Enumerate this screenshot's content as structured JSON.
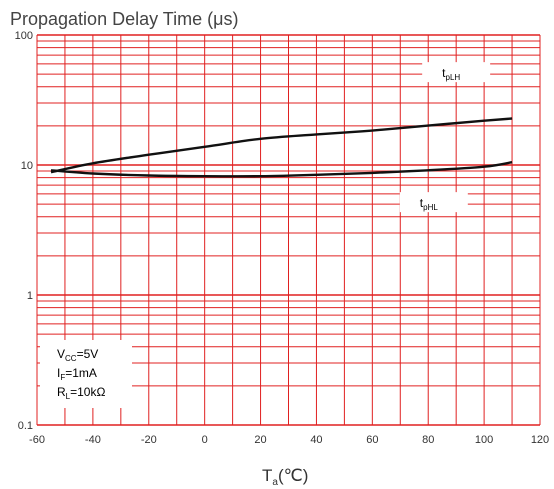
{
  "chart_data": {
    "type": "line",
    "title": "Propagation Delay Time (μs)",
    "xlabel": {
      "main": "T",
      "sub": "a",
      "unit": "(℃)"
    },
    "ylabel": "",
    "xlim": [
      -60,
      120
    ],
    "ylim": [
      0.1,
      100
    ],
    "yscale": "log",
    "grid": true,
    "grid_color": "#e02020",
    "line_color": "#111111",
    "x_ticks": [
      -60,
      -40,
      -20,
      0,
      20,
      40,
      60,
      80,
      100,
      120
    ],
    "y_ticks": [
      0.1,
      1,
      10,
      100
    ],
    "x_tick_labels": [
      "-60",
      "-40",
      "-20",
      "0",
      "20",
      "40",
      "60",
      "80",
      "100",
      "120"
    ],
    "y_tick_labels": [
      "0.1",
      "1",
      "10",
      "100"
    ],
    "series": [
      {
        "name": "tpLH",
        "label": {
          "main": "t",
          "sub": "pLH"
        },
        "x": [
          -55,
          -40,
          -20,
          0,
          20,
          40,
          60,
          80,
          100,
          110
        ],
        "y": [
          8.8,
          10.3,
          12.0,
          13.8,
          15.9,
          17.2,
          18.4,
          20.1,
          21.9,
          22.8
        ]
      },
      {
        "name": "tpHL",
        "label": {
          "main": "t",
          "sub": "pHL"
        },
        "x": [
          -55,
          -40,
          -20,
          0,
          20,
          40,
          60,
          80,
          100,
          110
        ],
        "y": [
          9.1,
          8.6,
          8.3,
          8.2,
          8.2,
          8.4,
          8.7,
          9.1,
          9.7,
          10.5
        ]
      }
    ],
    "conditions": [
      {
        "main": "V",
        "sub": "CC",
        "rest": "=5V"
      },
      {
        "main": "I",
        "sub": "F",
        "rest": "=1mA"
      },
      {
        "main": "R",
        "sub": "L",
        "rest": "=10kΩ"
      }
    ]
  }
}
